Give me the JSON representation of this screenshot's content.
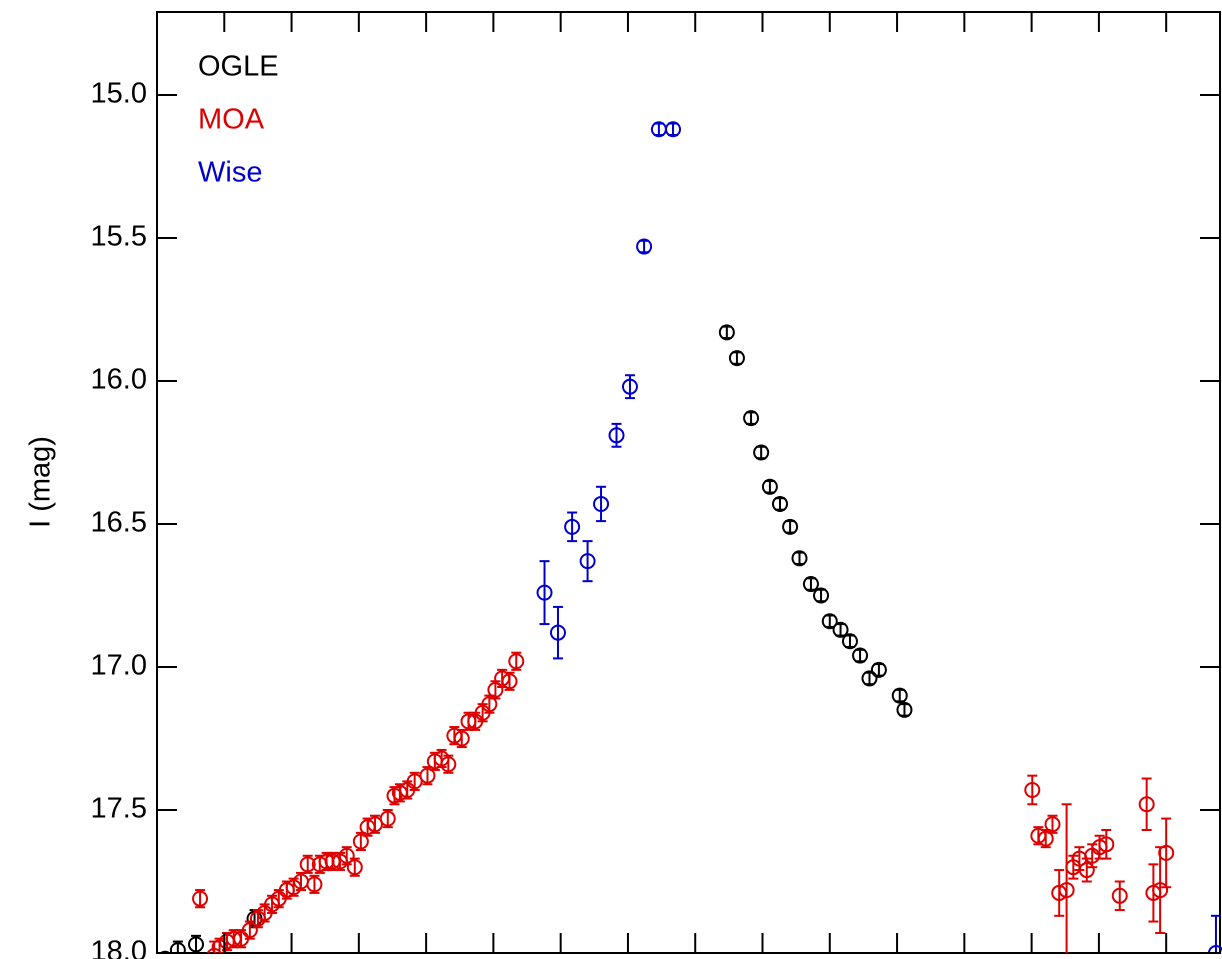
{
  "chart_data": {
    "type": "scatter",
    "ylabel": "I (mag)",
    "xlim": [
      0,
      158
    ],
    "xticks": [
      10,
      20,
      30,
      40,
      50,
      60,
      70,
      80,
      90,
      100,
      110,
      120,
      130,
      140,
      150
    ],
    "ylim": [
      18.0,
      14.71
    ],
    "yticks": [
      {
        "value": 15,
        "label": "15.0"
      },
      15.5,
      {
        "value": 16,
        "label": "16.0"
      },
      16.5,
      {
        "value": 17,
        "label": "17.0"
      },
      17.5,
      {
        "value": 18,
        "label": "18.0"
      }
    ],
    "legend": "upper left",
    "series": [
      {
        "name": "OGLE",
        "color": "#000000",
        "x": [
          1.2,
          3.1,
          4.7,
          5.8,
          14.5,
          84.7,
          86.2,
          88.3,
          89.8,
          91.1,
          92.6,
          94.1,
          95.5,
          97.2,
          98.7,
          100.0,
          101.6,
          103.0,
          104.5,
          105.9,
          107.3,
          110.4,
          111.1
        ],
        "values": [
          18.02,
          17.99,
          18.04,
          17.97,
          17.88,
          15.83,
          15.92,
          16.13,
          16.25,
          16.37,
          16.43,
          16.51,
          16.62,
          16.71,
          16.75,
          16.84,
          16.87,
          16.91,
          16.96,
          17.04,
          17.01,
          17.1,
          17.15
        ],
        "errors": [
          0.02,
          0.03,
          0.02,
          0.03,
          0.03,
          0.02,
          0.02,
          0.02,
          0.02,
          0.02,
          0.02,
          0.02,
          0.02,
          0.02,
          0.02,
          0.02,
          0.02,
          0.02,
          0.02,
          0.02,
          0.02,
          0.02,
          0.02
        ]
      },
      {
        "name": "MOA",
        "color": "#dd0000",
        "x": [
          6.4,
          8.5,
          9.3,
          10.4,
          11.4,
          12.5,
          13.8,
          15.0,
          16.0,
          17.1,
          18.1,
          19.3,
          20.3,
          21.4,
          22.4,
          23.4,
          24.2,
          25.2,
          26.1,
          27.2,
          28.2,
          29.4,
          30.3,
          31.3,
          32.4,
          34.3,
          35.3,
          36.1,
          37.2,
          38.3,
          40.2,
          41.3,
          42.3,
          43.3,
          44.2,
          45.3,
          46.3,
          47.3,
          48.4,
          49.4,
          50.3,
          51.3,
          52.4,
          53.4,
          130.1,
          131.0,
          132.1,
          133.1,
          134.1,
          135.2,
          136.2,
          137.1,
          138.2,
          139.0,
          140.1,
          141.1,
          143.1,
          147.1,
          148.1,
          149.1,
          150.0
        ],
        "values": [
          17.81,
          18.01,
          17.98,
          17.96,
          17.95,
          17.95,
          17.92,
          17.88,
          17.86,
          17.83,
          17.81,
          17.78,
          17.77,
          17.75,
          17.69,
          17.76,
          17.69,
          17.68,
          17.68,
          17.68,
          17.66,
          17.7,
          17.61,
          17.56,
          17.55,
          17.53,
          17.45,
          17.44,
          17.43,
          17.4,
          17.38,
          17.33,
          17.32,
          17.34,
          17.24,
          17.25,
          17.19,
          17.19,
          17.16,
          17.13,
          17.08,
          17.04,
          17.05,
          16.98,
          17.43,
          17.59,
          17.6,
          17.55,
          17.79,
          17.78,
          17.7,
          17.67,
          17.71,
          17.66,
          17.63,
          17.62,
          17.8,
          17.48,
          17.79,
          17.78,
          17.65
        ],
        "errors": [
          0.03,
          0.05,
          0.03,
          0.03,
          0.03,
          0.03,
          0.03,
          0.03,
          0.03,
          0.03,
          0.03,
          0.03,
          0.03,
          0.03,
          0.03,
          0.03,
          0.03,
          0.03,
          0.03,
          0.03,
          0.03,
          0.03,
          0.03,
          0.03,
          0.03,
          0.03,
          0.03,
          0.03,
          0.03,
          0.03,
          0.03,
          0.03,
          0.03,
          0.03,
          0.03,
          0.03,
          0.03,
          0.03,
          0.03,
          0.03,
          0.03,
          0.03,
          0.03,
          0.03,
          0.05,
          0.03,
          0.03,
          0.03,
          0.08,
          0.3,
          0.04,
          0.04,
          0.04,
          0.04,
          0.04,
          0.05,
          0.05,
          0.09,
          0.1,
          0.15,
          0.12
        ]
      },
      {
        "name": "Wise",
        "color": "#0000cc",
        "x": [
          57.6,
          59.6,
          61.7,
          64.0,
          66.0,
          68.3,
          70.3,
          72.4,
          74.6,
          76.7,
          157.4
        ],
        "values": [
          16.74,
          16.88,
          16.51,
          16.63,
          16.43,
          16.19,
          16.02,
          15.53,
          15.12,
          15.12,
          18.0
        ],
        "errors": [
          0.11,
          0.09,
          0.05,
          0.07,
          0.06,
          0.04,
          0.04,
          0.02,
          0.02,
          0.02,
          0.13
        ]
      }
    ]
  }
}
